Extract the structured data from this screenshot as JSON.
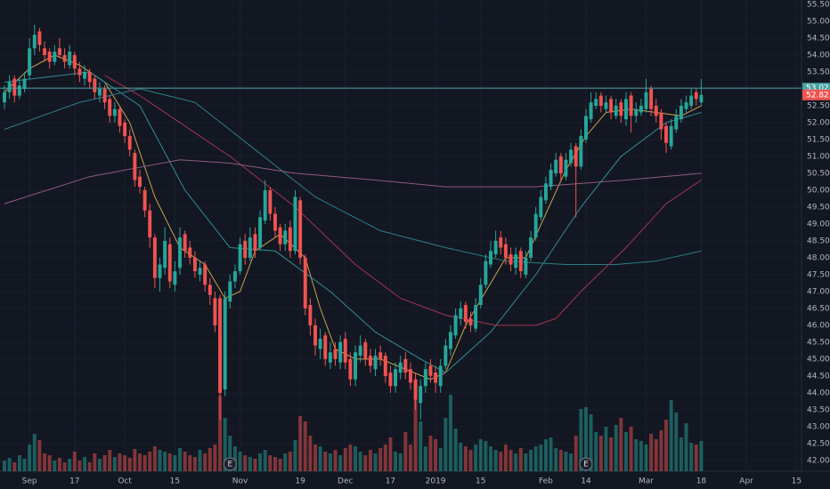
{
  "chart_data": {
    "type": "candlestick",
    "xlim": [
      -0.89,
      159
    ],
    "ylim": [
      41.68,
      55.63
    ],
    "grid": true,
    "up_color": "#26a69a",
    "down_color": "#ef5350",
    "xticks": [
      {
        "value": 5,
        "label": "Sep"
      },
      {
        "value": 14,
        "label": "17"
      },
      {
        "value": 24,
        "label": "Oct"
      },
      {
        "value": 34,
        "label": "15"
      },
      {
        "value": 47,
        "label": "Nov"
      },
      {
        "value": 59,
        "label": "19"
      },
      {
        "value": 68,
        "label": "Dec"
      },
      {
        "value": 77,
        "label": "17"
      },
      {
        "value": 86,
        "label": "2019"
      },
      {
        "value": 95,
        "label": "15"
      },
      {
        "value": 108,
        "label": "Feb"
      },
      {
        "value": 116,
        "label": "14"
      },
      {
        "value": 128,
        "label": "Mar"
      },
      {
        "value": 139,
        "label": "18"
      },
      {
        "value": 148,
        "label": "Apr"
      },
      {
        "value": 158,
        "label": "15"
      }
    ],
    "yticks": [
      {
        "value": 42,
        "label": "42.00"
      },
      {
        "value": 42.5,
        "label": "42.50"
      },
      {
        "value": 43,
        "label": "43.00"
      },
      {
        "value": 43.5,
        "label": "43.50"
      },
      {
        "value": 44,
        "label": "44.00"
      },
      {
        "value": 44.5,
        "label": "44.50"
      },
      {
        "value": 45,
        "label": "45.00"
      },
      {
        "value": 45.5,
        "label": "45.50"
      },
      {
        "value": 46,
        "label": "46.00"
      },
      {
        "value": 46.5,
        "label": "46.50"
      },
      {
        "value": 47,
        "label": "47.00"
      },
      {
        "value": 47.5,
        "label": "47.50"
      },
      {
        "value": 48,
        "label": "48.00"
      },
      {
        "value": 48.5,
        "label": "48.50"
      },
      {
        "value": 49,
        "label": "49.00"
      },
      {
        "value": 49.5,
        "label": "49.50"
      },
      {
        "value": 50,
        "label": "50.00"
      },
      {
        "value": 50.5,
        "label": "50.50"
      },
      {
        "value": 51,
        "label": "51.00"
      },
      {
        "value": 51.5,
        "label": "51.50"
      },
      {
        "value": 52,
        "label": "52.00"
      },
      {
        "value": 52.5,
        "label": "52.50"
      },
      {
        "value": 53,
        "label": "53.00"
      },
      {
        "value": 53.5,
        "label": "53.50"
      },
      {
        "value": 54,
        "label": "54.00"
      },
      {
        "value": 54.5,
        "label": "54.50"
      },
      {
        "value": 55,
        "label": "55.00"
      },
      {
        "value": 55.5,
        "label": "55.50"
      }
    ],
    "open": [
      52.6,
      52.9,
      53.3,
      52.8,
      53.0,
      53.4,
      54.2,
      54.7,
      54.2,
      54.1,
      53.8,
      54.2,
      54.0,
      53.7,
      54.0,
      53.6,
      53.3,
      53.5,
      53.3,
      52.8,
      53.0,
      52.7,
      52.2,
      52.4,
      52.0,
      51.6,
      51.1,
      50.4,
      50.0,
      49.4,
      48.6,
      47.4,
      47.7,
      48.4,
      47.2,
      47.7,
      48.7,
      48.3,
      48.0,
      47.5,
      47.8,
      47.2,
      46.8,
      46.8,
      44.1,
      46.7,
      47.3,
      47.6,
      48.5,
      48.0,
      48.7,
      48.3,
      49.1,
      50.0,
      49.3,
      48.9,
      48.4,
      48.9,
      48.2,
      49.7,
      48.0,
      46.6,
      46.0,
      45.3,
      45.7,
      44.9,
      45.3,
      44.9,
      45.6,
      45.0,
      44.4,
      45.1,
      45.5,
      45.1,
      44.7,
      45.2,
      45.1,
      44.6,
      44.2,
      44.6,
      45.0,
      44.7,
      44.4,
      43.7,
      44.2,
      44.8,
      44.6,
      44.2,
      44.8,
      45.3,
      45.7,
      46.2,
      46.6,
      46.2,
      45.9,
      46.6,
      47.2,
      47.8,
      48.1,
      48.6,
      48.4,
      48.1,
      47.7,
      48.2,
      47.5,
      48.0,
      48.6,
      49.2,
      49.7,
      50.1,
      50.5,
      51.0,
      50.4,
      50.8,
      51.3,
      50.7,
      51.5,
      52.1,
      52.5,
      52.8,
      52.4,
      52.7,
      52.2,
      52.6,
      52.1,
      52.8,
      52.2,
      52.3,
      52.4,
      53.0,
      52.5,
      52.3,
      51.9,
      51.3,
      51.8,
      52.1,
      52.4,
      52.5,
      52.9,
      52.6
    ],
    "high": [
      53.1,
      53.4,
      53.4,
      53.3,
      53.5,
      54.5,
      54.9,
      54.8,
      54.4,
      54.2,
      54.3,
      54.5,
      54.2,
      54.3,
      54.1,
      53.8,
      53.7,
      53.6,
      53.4,
      53.2,
      53.1,
      52.8,
      52.6,
      52.5,
      52.1,
      51.8,
      51.2,
      50.6,
      50.1,
      49.6,
      48.7,
      48.0,
      48.9,
      48.6,
      47.9,
      48.9,
      48.8,
      48.5,
      48.2,
      47.9,
      47.9,
      47.4,
      47.0,
      46.9,
      47.0,
      47.5,
      47.8,
      48.6,
      48.7,
      48.9,
      48.9,
      49.4,
      50.3,
      50.1,
      49.5,
      49.0,
      49.0,
      49.1,
      50.0,
      49.8,
      48.1,
      46.8,
      46.2,
      45.9,
      45.8,
      45.5,
      45.5,
      45.7,
      45.8,
      45.2,
      45.4,
      45.7,
      45.6,
      45.3,
      45.3,
      45.4,
      45.2,
      44.8,
      44.9,
      45.1,
      45.2,
      44.9,
      44.6,
      44.4,
      44.9,
      45.0,
      44.8,
      45.0,
      45.6,
      46.0,
      46.5,
      46.7,
      46.7,
      46.4,
      46.8,
      47.4,
      48.1,
      48.5,
      48.8,
      48.8,
      48.6,
      48.3,
      48.3,
      48.3,
      48.2,
      48.8,
      49.5,
      50.0,
      50.4,
      50.8,
      51.1,
      51.1,
      51.1,
      51.4,
      51.4,
      51.8,
      52.4,
      52.9,
      52.9,
      52.9,
      52.8,
      52.8,
      52.7,
      52.7,
      52.9,
      52.9,
      52.6,
      52.7,
      53.3,
      53.1,
      52.7,
      52.4,
      52.0,
      52.1,
      52.4,
      52.7,
      52.8,
      53.0,
      53.0,
      53.3
    ],
    "low": [
      52.4,
      52.7,
      52.6,
      52.7,
      52.9,
      53.3,
      54.0,
      54.1,
      53.8,
      53.6,
      53.7,
      53.9,
      53.6,
      53.6,
      53.4,
      53.2,
      53.1,
      53.0,
      52.7,
      52.6,
      52.4,
      52.0,
      52.0,
      51.7,
      51.4,
      51.0,
      50.1,
      49.9,
      49.2,
      48.3,
      47.1,
      47.0,
      47.5,
      47.1,
      47.0,
      47.5,
      48.0,
      47.8,
      47.4,
      47.3,
      47.0,
      46.6,
      45.8,
      43.2,
      43.9,
      46.5,
      47.1,
      47.5,
      47.8,
      47.9,
      48.0,
      48.2,
      49.0,
      49.1,
      48.6,
      48.2,
      48.2,
      48.0,
      48.1,
      47.8,
      46.3,
      45.7,
      45.1,
      45.0,
      44.8,
      44.7,
      44.8,
      44.7,
      44.7,
      44.2,
      44.2,
      44.9,
      44.8,
      44.6,
      44.5,
      44.8,
      44.3,
      44.0,
      44.0,
      44.4,
      44.4,
      44.1,
      43.5,
      43.2,
      44.0,
      44.3,
      44.0,
      44.0,
      44.7,
      45.1,
      45.6,
      46.0,
      45.9,
      45.8,
      45.8,
      46.5,
      47.1,
      47.7,
      48.0,
      48.1,
      47.8,
      47.6,
      47.5,
      47.4,
      47.4,
      47.9,
      48.5,
      49.1,
      49.6,
      50.0,
      50.4,
      50.3,
      50.3,
      50.7,
      49.2,
      50.6,
      51.4,
      52.0,
      52.4,
      52.3,
      52.3,
      52.1,
      52.1,
      52.0,
      51.9,
      51.7,
      52.0,
      52.2,
      52.3,
      52.2,
      52.0,
      51.5,
      51.1,
      51.2,
      51.7,
      52.0,
      52.3,
      52.4,
      52.5,
      52.5
    ],
    "close": [
      52.9,
      53.2,
      52.8,
      53.1,
      53.3,
      54.2,
      54.6,
      54.3,
      54.0,
      53.8,
      54.1,
      54.0,
      53.8,
      54.1,
      53.6,
      53.4,
      53.5,
      53.2,
      52.9,
      53.0,
      52.6,
      52.2,
      52.4,
      51.9,
      51.6,
      51.2,
      50.3,
      50.1,
      49.4,
      48.6,
      47.4,
      47.8,
      48.5,
      47.3,
      47.6,
      48.6,
      48.2,
      48.0,
      47.6,
      47.7,
      47.2,
      46.9,
      46.0,
      44.0,
      46.8,
      47.3,
      47.6,
      48.4,
      48.0,
      48.6,
      48.2,
      49.2,
      50.0,
      49.3,
      48.8,
      48.4,
      48.8,
      48.2,
      49.8,
      48.0,
      46.5,
      46.0,
      45.4,
      45.6,
      45.0,
      45.2,
      45.0,
      45.5,
      44.9,
      44.4,
      45.2,
      45.4,
      45.0,
      44.8,
      45.1,
      45.0,
      44.5,
      44.2,
      44.7,
      44.9,
      44.6,
      44.3,
      43.8,
      44.2,
      44.7,
      44.5,
      44.3,
      44.8,
      45.4,
      45.8,
      46.3,
      46.5,
      46.1,
      46.0,
      46.6,
      47.2,
      47.9,
      48.2,
      48.5,
      48.3,
      48.0,
      47.8,
      48.1,
      47.6,
      48.0,
      48.6,
      49.3,
      49.8,
      50.2,
      50.6,
      50.9,
      50.5,
      50.9,
      51.2,
      50.7,
      51.6,
      52.2,
      52.6,
      52.7,
      52.5,
      52.6,
      52.3,
      52.5,
      52.2,
      52.7,
      52.2,
      52.4,
      52.5,
      52.9,
      52.4,
      52.2,
      51.8,
      51.4,
      51.9,
      52.2,
      52.5,
      52.6,
      52.8,
      52.7,
      52.82
    ],
    "volume_lim": [
      0,
      100
    ],
    "volume": [
      12,
      15,
      10,
      18,
      14,
      30,
      42,
      35,
      20,
      18,
      12,
      15,
      10,
      14,
      22,
      12,
      16,
      10,
      20,
      14,
      18,
      24,
      16,
      20,
      18,
      15,
      25,
      20,
      18,
      22,
      28,
      24,
      22,
      20,
      18,
      26,
      22,
      18,
      16,
      24,
      20,
      26,
      30,
      85,
      60,
      40,
      28,
      22,
      18,
      16,
      14,
      20,
      24,
      18,
      16,
      14,
      20,
      22,
      35,
      62,
      56,
      40,
      30,
      28,
      22,
      20,
      24,
      18,
      26,
      30,
      28,
      22,
      18,
      24,
      20,
      26,
      30,
      38,
      22,
      20,
      44,
      30,
      86,
      56,
      28,
      40,
      36,
      26,
      60,
      86,
      48,
      32,
      28,
      24,
      30,
      36,
      34,
      28,
      24,
      22,
      30,
      24,
      20,
      26,
      20,
      24,
      28,
      30,
      36,
      38,
      26,
      24,
      22,
      20,
      40,
      70,
      72,
      64,
      44,
      40,
      50,
      38,
      52,
      60,
      44,
      50,
      36,
      34,
      30,
      42,
      36,
      46,
      58,
      80,
      66,
      38,
      54,
      32,
      30,
      34
    ],
    "moving_averages": [
      {
        "color": "#c9a24f",
        "x": [
          0,
          5,
          10,
          15,
          20,
          25,
          30,
          35,
          40,
          44,
          47,
          50,
          55,
          60,
          63,
          66,
          70,
          75,
          80,
          85,
          88,
          92,
          96,
          100,
          104,
          108,
          112,
          116,
          120,
          125,
          130,
          135,
          139
        ],
        "values": [
          52.9,
          53.6,
          54.0,
          53.7,
          53.2,
          52.0,
          49.8,
          48.3,
          47.8,
          46.8,
          47.0,
          48.2,
          48.7,
          48.0,
          46.5,
          45.3,
          45.0,
          45.0,
          44.7,
          44.4,
          44.6,
          46.0,
          47.0,
          48.0,
          48.0,
          49.3,
          50.6,
          51.6,
          52.3,
          52.4,
          52.3,
          52.2,
          52.5
        ]
      },
      {
        "color": "#2f8f95",
        "x": [
          0,
          17,
          27,
          36,
          45,
          54,
          65,
          74,
          83,
          88,
          97,
          106,
          115,
          123,
          132,
          139
        ],
        "values": [
          53.2,
          53.5,
          52.5,
          50.0,
          48.3,
          48.2,
          47.0,
          45.8,
          45.0,
          44.6,
          45.8,
          47.5,
          49.5,
          51.0,
          52.0,
          52.3
        ]
      },
      {
        "color": "#2c7e86",
        "x": [
          0,
          15,
          27,
          38,
          50,
          62,
          75,
          88,
          100,
          112,
          122,
          130,
          139
        ],
        "values": [
          51.8,
          52.6,
          53.0,
          52.6,
          51.2,
          49.8,
          48.8,
          48.3,
          47.9,
          47.8,
          47.8,
          47.9,
          48.2
        ]
      },
      {
        "color": "#a3344f",
        "x": [
          20,
          27,
          35,
          45,
          58,
          70,
          79,
          88,
          98,
          106,
          110,
          115,
          124,
          132,
          139
        ],
        "values": [
          53.4,
          52.8,
          52.0,
          51.0,
          49.5,
          47.8,
          46.8,
          46.3,
          46.0,
          46.0,
          46.2,
          47.0,
          48.3,
          49.6,
          50.3
        ]
      },
      {
        "color": "#8e5a82",
        "x": [
          0,
          17,
          35,
          45,
          58,
          74,
          88,
          106,
          124,
          139
        ],
        "values": [
          49.6,
          50.4,
          50.9,
          50.8,
          50.5,
          50.3,
          50.1,
          50.1,
          50.3,
          50.5
        ]
      }
    ],
    "price_lines": [
      {
        "value": 53.02,
        "label": "53.02",
        "color": "#4ba3a3"
      },
      {
        "value": 52.82,
        "label": "52.82",
        "color": "#ef5350"
      }
    ],
    "events": [
      {
        "x": 45,
        "label": "E"
      },
      {
        "x": 116,
        "label": "E"
      }
    ]
  }
}
